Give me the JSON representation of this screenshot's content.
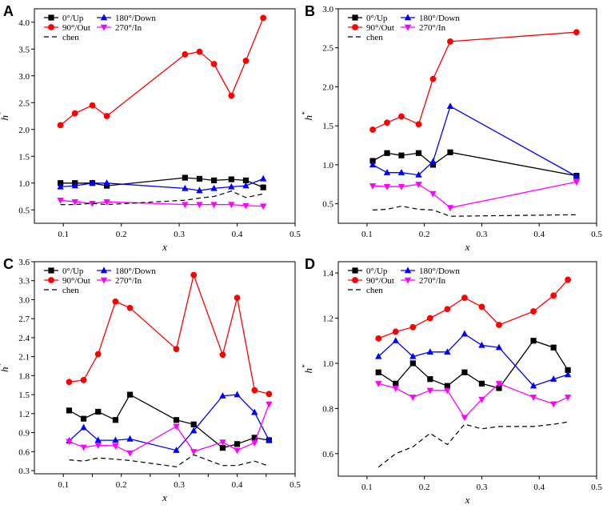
{
  "colors": {
    "up": "#000000",
    "down": "#0000ff",
    "out": "#ff0000",
    "in": "#ff00ff",
    "chen": "#000000"
  },
  "chart_data": [
    {
      "panel": "A",
      "type": "line",
      "xlabel": "x",
      "ylabel": "h*",
      "xlim": [
        0.05,
        0.5
      ],
      "ylim": [
        0.25,
        4.25
      ],
      "xticks": [
        0.1,
        0.2,
        0.3,
        0.4,
        0.5
      ],
      "xtick_labels": [
        "0.1",
        "0.2",
        "0.3",
        "0.4",
        "0.5"
      ],
      "yticks": [
        0.5,
        1.0,
        1.5,
        2.0,
        2.5,
        3.0,
        3.5,
        4.0
      ],
      "ytick_labels": [
        "0.5",
        "1.0",
        "1.5",
        "2.0",
        "2.5",
        "3.0",
        "3.5",
        "4.0"
      ],
      "legend": [
        "0°/Up",
        "180°/Down",
        "90°/Out",
        "270°/In",
        "chen"
      ],
      "legend_rows": [
        [
          {
            "name": "0°/Up",
            "key": "up",
            "marker": "square",
            "dash": false
          },
          {
            "name": "180°/Down",
            "key": "down",
            "marker": "triangle-up",
            "dash": false
          }
        ],
        [
          {
            "name": "90°/Out",
            "key": "out",
            "marker": "circle",
            "dash": false
          },
          {
            "name": "270°/In",
            "key": "in",
            "marker": "triangle-down",
            "dash": false
          }
        ],
        [
          {
            "name": "chen",
            "key": "chen",
            "marker": "none",
            "dash": true
          }
        ]
      ],
      "series": [
        {
          "name": "0°/Up",
          "key": "up",
          "marker": "square",
          "dash": false,
          "x": [
            0.095,
            0.12,
            0.15,
            0.175,
            0.31,
            0.335,
            0.36,
            0.39,
            0.415,
            0.445
          ],
          "y": [
            1.0,
            1.0,
            1.0,
            0.95,
            1.1,
            1.08,
            1.05,
            1.07,
            1.05,
            0.92
          ]
        },
        {
          "name": "180°/Down",
          "key": "down",
          "marker": "triangle-up",
          "dash": false,
          "x": [
            0.095,
            0.12,
            0.15,
            0.175,
            0.31,
            0.335,
            0.36,
            0.39,
            0.415,
            0.445
          ],
          "y": [
            0.93,
            0.95,
            1.0,
            1.0,
            0.9,
            0.86,
            0.9,
            0.93,
            0.95,
            1.08
          ]
        },
        {
          "name": "90°/Out",
          "key": "out",
          "marker": "circle",
          "dash": false,
          "x": [
            0.095,
            0.12,
            0.15,
            0.175,
            0.31,
            0.335,
            0.36,
            0.39,
            0.415,
            0.445
          ],
          "y": [
            2.08,
            2.3,
            2.45,
            2.25,
            3.4,
            3.45,
            3.22,
            2.63,
            3.28,
            4.08
          ]
        },
        {
          "name": "270°/In",
          "key": "in",
          "marker": "triangle-down",
          "dash": false,
          "x": [
            0.095,
            0.12,
            0.15,
            0.175,
            0.31,
            0.335,
            0.36,
            0.39,
            0.415,
            0.445
          ],
          "y": [
            0.68,
            0.65,
            0.62,
            0.65,
            0.6,
            0.6,
            0.6,
            0.6,
            0.58,
            0.57
          ]
        },
        {
          "name": "chen",
          "key": "chen",
          "marker": "none",
          "dash": true,
          "x": [
            0.095,
            0.12,
            0.15,
            0.175,
            0.31,
            0.335,
            0.36,
            0.39,
            0.415,
            0.445
          ],
          "y": [
            0.6,
            0.6,
            0.62,
            0.6,
            0.68,
            0.72,
            0.75,
            0.85,
            0.73,
            0.8
          ]
        }
      ]
    },
    {
      "panel": "B",
      "type": "line",
      "xlabel": "x",
      "ylabel": "h*",
      "xlim": [
        0.05,
        0.5
      ],
      "ylim": [
        0.25,
        3.0
      ],
      "xticks": [
        0.1,
        0.2,
        0.3,
        0.4,
        0.5
      ],
      "xtick_labels": [
        "0.1",
        "0.2",
        "0.3",
        "0.4",
        "0.5"
      ],
      "yticks": [
        0.5,
        1.0,
        1.5,
        2.0,
        2.5,
        3.0
      ],
      "ytick_labels": [
        "0.5",
        "1.0",
        "1.5",
        "2.0",
        "2.5",
        "3.0"
      ],
      "legend": [
        "0°/Up",
        "180°/Down",
        "90°/Out",
        "270°/In",
        "chen"
      ],
      "legend_rows": [
        [
          {
            "name": "0°/Up",
            "key": "up",
            "marker": "square",
            "dash": false
          },
          {
            "name": "180°/Down",
            "key": "down",
            "marker": "triangle-up",
            "dash": false
          }
        ],
        [
          {
            "name": "90°/Out",
            "key": "out",
            "marker": "circle",
            "dash": false
          },
          {
            "name": "270°/In",
            "key": "in",
            "marker": "triangle-down",
            "dash": false
          }
        ],
        [
          {
            "name": "chen",
            "key": "chen",
            "marker": "none",
            "dash": true
          }
        ]
      ],
      "series": [
        {
          "name": "0°/Up",
          "key": "up",
          "marker": "square",
          "dash": false,
          "x": [
            0.11,
            0.135,
            0.16,
            0.19,
            0.215,
            0.245,
            0.465
          ],
          "y": [
            1.05,
            1.15,
            1.12,
            1.15,
            1.0,
            1.16,
            0.86
          ]
        },
        {
          "name": "180°/Down",
          "key": "down",
          "marker": "triangle-up",
          "dash": false,
          "x": [
            0.11,
            0.135,
            0.16,
            0.19,
            0.215,
            0.245,
            0.465
          ],
          "y": [
            1.0,
            0.9,
            0.9,
            0.87,
            1.04,
            1.75,
            0.85
          ]
        },
        {
          "name": "90°/Out",
          "key": "out",
          "marker": "circle",
          "dash": false,
          "x": [
            0.11,
            0.135,
            0.16,
            0.19,
            0.215,
            0.245,
            0.465
          ],
          "y": [
            1.45,
            1.54,
            1.62,
            1.52,
            2.1,
            2.58,
            2.7
          ]
        },
        {
          "name": "270°/In",
          "key": "in",
          "marker": "triangle-down",
          "dash": false,
          "x": [
            0.11,
            0.135,
            0.16,
            0.19,
            0.215,
            0.245,
            0.465
          ],
          "y": [
            0.73,
            0.72,
            0.72,
            0.75,
            0.63,
            0.45,
            0.78
          ]
        },
        {
          "name": "chen",
          "key": "chen",
          "marker": "none",
          "dash": true,
          "x": [
            0.11,
            0.135,
            0.16,
            0.19,
            0.215,
            0.245,
            0.465
          ],
          "y": [
            0.42,
            0.43,
            0.47,
            0.43,
            0.42,
            0.34,
            0.36
          ]
        }
      ]
    },
    {
      "panel": "C",
      "type": "line",
      "xlabel": "x",
      "ylabel": "h*",
      "xlim": [
        0.05,
        0.5
      ],
      "ylim": [
        0.25,
        3.6
      ],
      "xticks": [
        0.1,
        0.15,
        0.2,
        0.25,
        0.3,
        0.35,
        0.4,
        0.45,
        0.5
      ],
      "xtick_labels": [
        "0.1",
        "",
        "0.2",
        "",
        "0.3",
        "",
        "0.4",
        "",
        "0.5"
      ],
      "yticks": [
        0.3,
        0.6,
        0.9,
        1.2,
        1.5,
        1.8,
        2.1,
        2.4,
        2.7,
        3.0,
        3.3,
        3.6
      ],
      "ytick_labels": [
        "0.3",
        "0.6",
        "0.9",
        "1.2",
        "1.5",
        "1.8",
        "2.1",
        "2.4",
        "2.7",
        "3.0",
        "3.3",
        "3.6"
      ],
      "legend": [
        "0°/Up",
        "180°/Down",
        "90°/Out",
        "270°/In",
        "chen"
      ],
      "legend_rows": [
        [
          {
            "name": "0°/Up",
            "key": "up",
            "marker": "square",
            "dash": false
          },
          {
            "name": "180°/Down",
            "key": "down",
            "marker": "triangle-up",
            "dash": false
          }
        ],
        [
          {
            "name": "90°/Out",
            "key": "out",
            "marker": "circle",
            "dash": false
          },
          {
            "name": "270°/In",
            "key": "in",
            "marker": "triangle-down",
            "dash": false
          }
        ],
        [
          {
            "name": "chen",
            "key": "chen",
            "marker": "none",
            "dash": true
          }
        ]
      ],
      "series": [
        {
          "name": "0°/Up",
          "key": "up",
          "marker": "square",
          "dash": false,
          "x": [
            0.11,
            0.135,
            0.16,
            0.19,
            0.215,
            0.295,
            0.325,
            0.375,
            0.4,
            0.43,
            0.455
          ],
          "y": [
            1.25,
            1.12,
            1.23,
            1.1,
            1.5,
            1.1,
            1.03,
            0.66,
            0.72,
            0.82,
            0.78
          ]
        },
        {
          "name": "180°/Down",
          "key": "down",
          "marker": "triangle-up",
          "dash": false,
          "x": [
            0.11,
            0.135,
            0.16,
            0.19,
            0.215,
            0.295,
            0.325,
            0.375,
            0.4,
            0.43,
            0.455
          ],
          "y": [
            0.77,
            0.98,
            0.78,
            0.78,
            0.8,
            0.62,
            0.93,
            1.48,
            1.5,
            1.22,
            0.78
          ]
        },
        {
          "name": "90°/Out",
          "key": "out",
          "marker": "circle",
          "dash": false,
          "x": [
            0.11,
            0.135,
            0.16,
            0.19,
            0.215,
            0.295,
            0.325,
            0.375,
            0.4,
            0.43,
            0.455
          ],
          "y": [
            1.7,
            1.73,
            2.14,
            2.97,
            2.87,
            2.22,
            3.39,
            2.13,
            3.03,
            1.57,
            1.51
          ]
        },
        {
          "name": "270°/In",
          "key": "in",
          "marker": "triangle-down",
          "dash": false,
          "x": [
            0.11,
            0.135,
            0.16,
            0.19,
            0.215,
            0.295,
            0.325,
            0.375,
            0.4,
            0.43,
            0.455
          ],
          "y": [
            0.76,
            0.67,
            0.7,
            0.69,
            0.58,
            1.0,
            0.6,
            0.75,
            0.62,
            0.74,
            1.35
          ]
        },
        {
          "name": "chen",
          "key": "chen",
          "marker": "none",
          "dash": true,
          "x": [
            0.11,
            0.135,
            0.16,
            0.19,
            0.215,
            0.295,
            0.325,
            0.375,
            0.4,
            0.43,
            0.455
          ],
          "y": [
            0.47,
            0.45,
            0.5,
            0.48,
            0.46,
            0.36,
            0.55,
            0.38,
            0.38,
            0.45,
            0.37
          ]
        }
      ]
    },
    {
      "panel": "D",
      "type": "line",
      "xlabel": "x",
      "ylabel": "h*",
      "xlim": [
        0.05,
        0.5
      ],
      "ylim": [
        0.5,
        1.45
      ],
      "xticks": [
        0.1,
        0.2,
        0.3,
        0.4,
        0.5
      ],
      "xtick_labels": [
        "0.1",
        "0.2",
        "0.3",
        "0.4",
        "0.5"
      ],
      "yticks": [
        0.6,
        0.8,
        1.0,
        1.2,
        1.4
      ],
      "ytick_labels": [
        "0.6",
        "0.8",
        "1.0",
        "1.2",
        "1.4"
      ],
      "legend": [
        "0°/Up",
        "180°/Down",
        "90°/Out",
        "270°/In",
        "chen"
      ],
      "legend_rows": [
        [
          {
            "name": "0°/Up",
            "key": "up",
            "marker": "square",
            "dash": false
          },
          {
            "name": "180°/Down",
            "key": "down",
            "marker": "triangle-up",
            "dash": false
          }
        ],
        [
          {
            "name": "90°/Out",
            "key": "out",
            "marker": "circle",
            "dash": false
          },
          {
            "name": "270°/In",
            "key": "in",
            "marker": "triangle-down",
            "dash": false
          }
        ],
        [
          {
            "name": "chen",
            "key": "chen",
            "marker": "none",
            "dash": true
          }
        ]
      ],
      "series": [
        {
          "name": "0°/Up",
          "key": "up",
          "marker": "square",
          "dash": false,
          "x": [
            0.12,
            0.15,
            0.18,
            0.21,
            0.24,
            0.27,
            0.3,
            0.33,
            0.39,
            0.425,
            0.45
          ],
          "y": [
            0.96,
            0.91,
            1.0,
            0.93,
            0.9,
            0.96,
            0.91,
            0.89,
            1.1,
            1.07,
            0.97
          ]
        },
        {
          "name": "180°/Down",
          "key": "down",
          "marker": "triangle-up",
          "dash": false,
          "x": [
            0.12,
            0.15,
            0.18,
            0.21,
            0.24,
            0.27,
            0.3,
            0.33,
            0.39,
            0.425,
            0.45
          ],
          "y": [
            1.03,
            1.1,
            1.03,
            1.05,
            1.05,
            1.13,
            1.08,
            1.07,
            0.9,
            0.93,
            0.95
          ]
        },
        {
          "name": "90°/Out",
          "key": "out",
          "marker": "circle",
          "dash": false,
          "x": [
            0.12,
            0.15,
            0.18,
            0.21,
            0.24,
            0.27,
            0.3,
            0.33,
            0.39,
            0.425,
            0.45
          ],
          "y": [
            1.11,
            1.14,
            1.16,
            1.2,
            1.24,
            1.29,
            1.25,
            1.17,
            1.23,
            1.3,
            1.37
          ]
        },
        {
          "name": "270°/In",
          "key": "in",
          "marker": "triangle-down",
          "dash": false,
          "x": [
            0.12,
            0.15,
            0.18,
            0.21,
            0.24,
            0.27,
            0.3,
            0.33,
            0.39,
            0.425,
            0.45
          ],
          "y": [
            0.91,
            0.89,
            0.85,
            0.88,
            0.88,
            0.76,
            0.84,
            0.91,
            0.85,
            0.82,
            0.85
          ]
        },
        {
          "name": "chen",
          "key": "chen",
          "marker": "none",
          "dash": true,
          "x": [
            0.12,
            0.15,
            0.18,
            0.21,
            0.24,
            0.27,
            0.3,
            0.33,
            0.39,
            0.425,
            0.45
          ],
          "y": [
            0.54,
            0.6,
            0.63,
            0.69,
            0.64,
            0.73,
            0.71,
            0.72,
            0.72,
            0.73,
            0.74
          ]
        }
      ]
    }
  ]
}
